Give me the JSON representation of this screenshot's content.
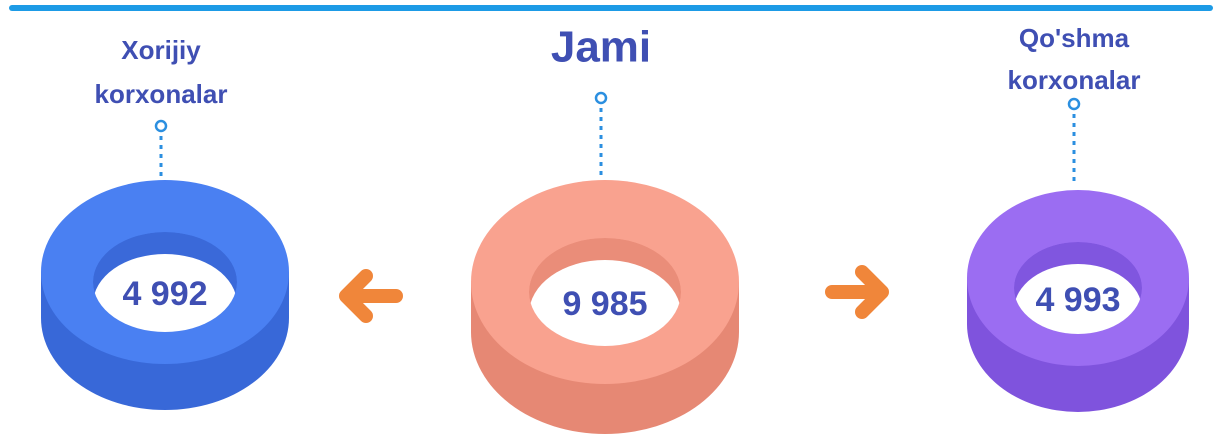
{
  "items": [
    {
      "label": [
        "Xorijiy",
        "korxonalar"
      ],
      "value": "4 992"
    },
    {
      "label": [
        "Jami"
      ],
      "value": "9 985"
    },
    {
      "label": [
        "Qo'shma",
        "korxonalar"
      ],
      "value": "4 993"
    }
  ]
}
